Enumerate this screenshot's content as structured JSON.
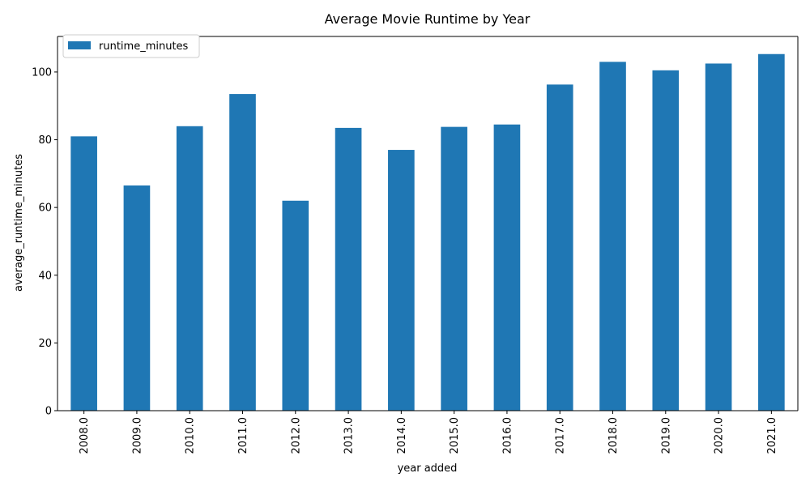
{
  "chart_data": {
    "type": "bar",
    "title": "Average Movie Runtime by Year",
    "xlabel": "year added",
    "ylabel": "average_runtime_minutes",
    "categories": [
      "2008.0",
      "2009.0",
      "2010.0",
      "2011.0",
      "2012.0",
      "2013.0",
      "2014.0",
      "2015.0",
      "2016.0",
      "2017.0",
      "2018.0",
      "2019.0",
      "2020.0",
      "2021.0"
    ],
    "series": [
      {
        "name": "runtime_minutes",
        "color": "#1f77b4",
        "values": [
          81.0,
          66.5,
          84.0,
          93.5,
          62.0,
          83.5,
          77.0,
          83.8,
          84.5,
          96.3,
          103.0,
          100.5,
          102.5,
          105.3
        ]
      }
    ],
    "ylim": [
      0,
      110.5
    ],
    "yticks": [
      0,
      20,
      40,
      60,
      80,
      100
    ],
    "legend_position": "top-left",
    "grid": false,
    "x_tick_rotation": "vertical"
  }
}
